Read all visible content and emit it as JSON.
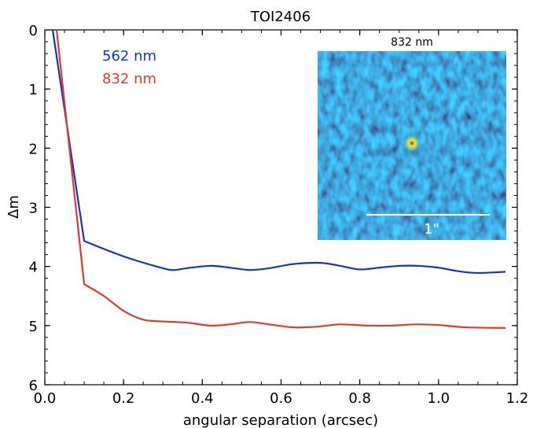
{
  "chart_data": {
    "type": "line",
    "title": "TOI2406",
    "xlabel": "angular separation (arcsec)",
    "ylabel": "Δm",
    "xlim": [
      0.0,
      1.2
    ],
    "ylim": [
      0,
      6
    ],
    "y_inverted": true,
    "grid": false,
    "legend_placement": "top-left",
    "x_ticks": [
      "0.0",
      "0.2",
      "0.4",
      "0.6",
      "0.8",
      "1.0",
      "1.2"
    ],
    "y_ticks": [
      "0",
      "1",
      "2",
      "3",
      "4",
      "5",
      "6"
    ],
    "series": [
      {
        "name": "562 nm",
        "color": "#1133cc",
        "x": [
          0.02,
          0.1,
          0.2,
          0.3,
          0.33,
          0.36,
          0.42,
          0.47,
          0.52,
          0.57,
          0.63,
          0.7,
          0.75,
          0.8,
          0.85,
          0.9,
          0.95,
          1.0,
          1.05,
          1.1,
          1.17
        ],
        "y": [
          0.0,
          3.57,
          3.83,
          4.03,
          4.06,
          4.03,
          3.99,
          4.02,
          4.06,
          4.03,
          3.96,
          3.94,
          3.99,
          4.05,
          4.02,
          3.99,
          3.99,
          4.02,
          4.08,
          4.11,
          4.09
        ]
      },
      {
        "name": "832 nm",
        "color": "#e03a2b",
        "x": [
          0.03,
          0.1,
          0.15,
          0.2,
          0.25,
          0.3,
          0.36,
          0.42,
          0.47,
          0.52,
          0.57,
          0.63,
          0.69,
          0.75,
          0.82,
          0.88,
          0.94,
          1.0,
          1.07,
          1.17
        ],
        "y": [
          0.0,
          4.3,
          4.5,
          4.75,
          4.9,
          4.93,
          4.95,
          5.0,
          4.98,
          4.94,
          4.98,
          5.03,
          5.02,
          4.98,
          5.0,
          5.0,
          4.98,
          4.99,
          5.03,
          5.04
        ]
      }
    ],
    "inset": {
      "title": "832 nm",
      "scale_label": "1\"",
      "image_type": "speckle-image"
    }
  }
}
